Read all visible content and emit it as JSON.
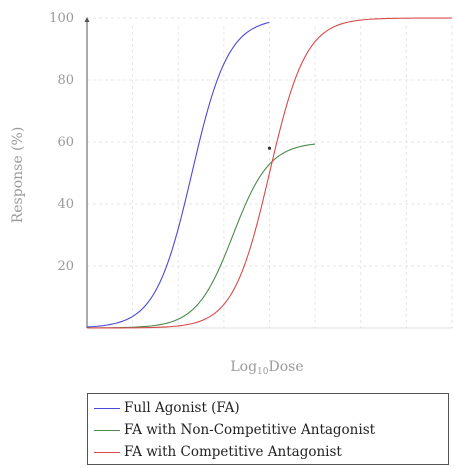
{
  "chart_data": {
    "type": "line",
    "title": "",
    "xlabel": "Log",
    "xlabel_sub": "10",
    "xlabel_tail": "Dose",
    "ylabel": "Response (%)",
    "xlim": [
      0,
      8
    ],
    "ylim": [
      0,
      100
    ],
    "yticks": [
      "20",
      "40",
      "60",
      "80",
      "100"
    ],
    "x_gridlines": 8,
    "grid": true,
    "legend_position": "bottom",
    "series": [
      {
        "name": "Full Agonist (FA)",
        "color": "#4a4ad6",
        "emax": 100,
        "ec50": 2.3,
        "hill": 2.5,
        "x": [
          0,
          4.0
        ],
        "points": [
          [
            0,
            0.1
          ],
          [
            0.5,
            0.4
          ],
          [
            1.0,
            1.5
          ],
          [
            1.5,
            8
          ],
          [
            2.0,
            32
          ],
          [
            2.3,
            50
          ],
          [
            2.6,
            68
          ],
          [
            3.0,
            86
          ],
          [
            3.5,
            96
          ],
          [
            4.0,
            99.6
          ]
        ]
      },
      {
        "name": "FA with Non-Competitive Antagonist",
        "color": "#4a8a4a",
        "emax": 60,
        "ec50": 3.2,
        "hill": 2.5,
        "x": [
          0,
          5.0
        ],
        "points": [
          [
            0,
            0.05
          ],
          [
            1.0,
            0.4
          ],
          [
            2.0,
            5
          ],
          [
            2.6,
            18
          ],
          [
            3.2,
            30
          ],
          [
            3.6,
            41
          ],
          [
            4.0,
            50
          ],
          [
            4.5,
            56
          ],
          [
            5.0,
            59
          ]
        ]
      },
      {
        "name": "FA with Competitive Antagonist",
        "color": "#d84a4a",
        "emax": 100,
        "ec50": 4.0,
        "hill": 2.5,
        "x": [
          0,
          8.0
        ],
        "points": [
          [
            0,
            0.05
          ],
          [
            2.0,
            1.0
          ],
          [
            3.0,
            8
          ],
          [
            3.5,
            25
          ],
          [
            4.0,
            50
          ],
          [
            4.5,
            75
          ],
          [
            5.0,
            90
          ],
          [
            6.0,
            99
          ],
          [
            8.0,
            100
          ]
        ]
      }
    ]
  }
}
